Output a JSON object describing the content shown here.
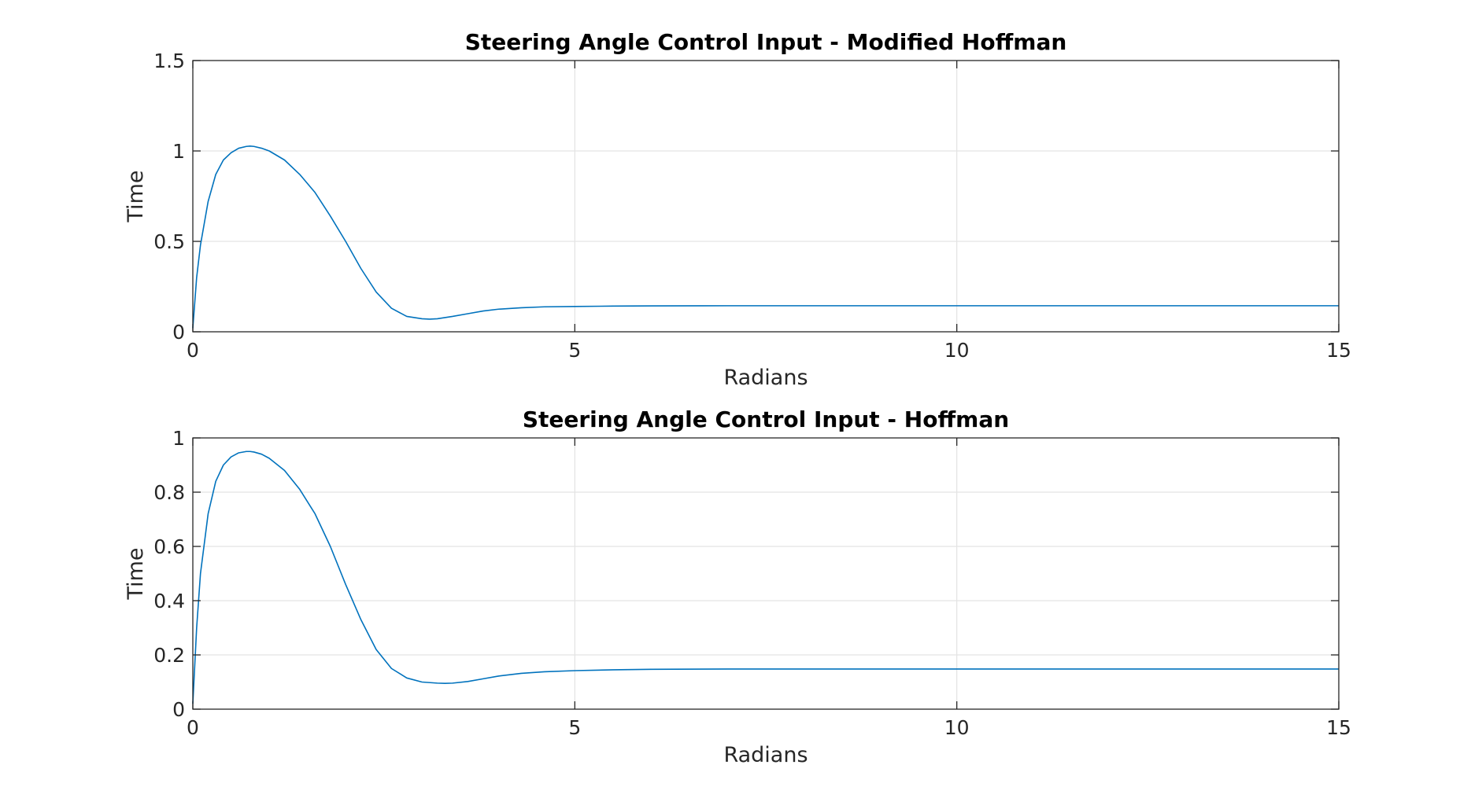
{
  "chart_data": [
    {
      "type": "line",
      "title": "Steering Angle Control Input - Modified Hoffman",
      "xlabel": "Radians",
      "ylabel": "Time",
      "xlim": [
        0,
        15
      ],
      "ylim": [
        0,
        1.5
      ],
      "xticks": [
        0,
        5,
        10,
        15
      ],
      "yticks": [
        0,
        0.5,
        1,
        1.5
      ],
      "ytick_labels": [
        "0",
        "0.5",
        "1",
        "1.5"
      ],
      "grid": true,
      "series": [
        {
          "color": "#0072BD",
          "x": [
            0,
            0.05,
            0.1,
            0.2,
            0.3,
            0.4,
            0.5,
            0.6,
            0.7,
            0.75,
            0.8,
            0.9,
            1.0,
            1.2,
            1.4,
            1.6,
            1.8,
            2.0,
            2.2,
            2.4,
            2.6,
            2.8,
            3.0,
            3.1,
            3.2,
            3.4,
            3.6,
            3.8,
            4.0,
            4.3,
            4.6,
            5.0,
            5.5,
            6.0,
            7.0,
            8.0,
            9.0,
            10.0,
            11.0,
            12.0,
            13.0,
            14.0,
            15.0
          ],
          "y": [
            0.02,
            0.3,
            0.48,
            0.72,
            0.87,
            0.95,
            0.99,
            1.015,
            1.025,
            1.027,
            1.025,
            1.015,
            1.0,
            0.95,
            0.87,
            0.77,
            0.64,
            0.5,
            0.35,
            0.22,
            0.13,
            0.085,
            0.072,
            0.07,
            0.072,
            0.085,
            0.1,
            0.115,
            0.125,
            0.133,
            0.138,
            0.14,
            0.142,
            0.143,
            0.144,
            0.144,
            0.144,
            0.144,
            0.144,
            0.144,
            0.144,
            0.144,
            0.144
          ]
        }
      ]
    },
    {
      "type": "line",
      "title": "Steering Angle Control Input - Hoffman",
      "xlabel": "Radians",
      "ylabel": "Time",
      "xlim": [
        0,
        15
      ],
      "ylim": [
        0,
        1
      ],
      "xticks": [
        0,
        5,
        10,
        15
      ],
      "yticks": [
        0,
        0.2,
        0.4,
        0.6,
        0.8,
        1
      ],
      "ytick_labels": [
        "0",
        "0.2",
        "0.4",
        "0.6",
        "0.8",
        "1"
      ],
      "grid": true,
      "series": [
        {
          "color": "#0072BD",
          "x": [
            0,
            0.05,
            0.1,
            0.2,
            0.3,
            0.4,
            0.5,
            0.6,
            0.7,
            0.75,
            0.8,
            0.9,
            1.0,
            1.2,
            1.4,
            1.6,
            1.8,
            2.0,
            2.2,
            2.4,
            2.6,
            2.8,
            3.0,
            3.2,
            3.3,
            3.4,
            3.6,
            3.8,
            4.0,
            4.3,
            4.6,
            5.0,
            5.5,
            6.0,
            7.0,
            8.0,
            9.0,
            10.0,
            11.0,
            12.0,
            13.0,
            14.0,
            15.0
          ],
          "y": [
            0.02,
            0.3,
            0.5,
            0.72,
            0.84,
            0.9,
            0.93,
            0.945,
            0.95,
            0.95,
            0.948,
            0.94,
            0.925,
            0.88,
            0.81,
            0.72,
            0.6,
            0.46,
            0.33,
            0.22,
            0.15,
            0.115,
            0.1,
            0.096,
            0.095,
            0.096,
            0.102,
            0.112,
            0.122,
            0.132,
            0.138,
            0.142,
            0.145,
            0.147,
            0.148,
            0.148,
            0.148,
            0.148,
            0.148,
            0.148,
            0.148,
            0.148,
            0.148
          ]
        }
      ]
    }
  ]
}
